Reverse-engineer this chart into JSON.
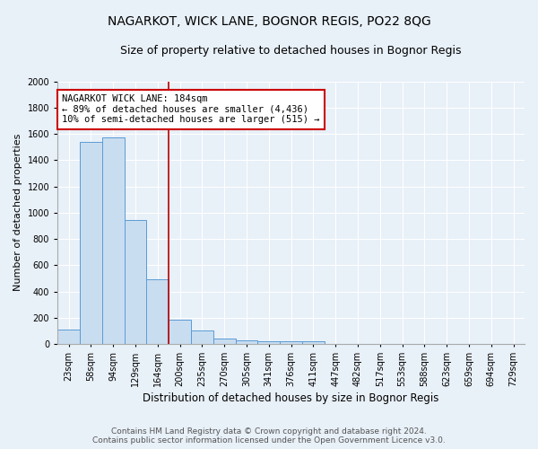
{
  "title": "NAGARKOT, WICK LANE, BOGNOR REGIS, PO22 8QG",
  "subtitle": "Size of property relative to detached houses in Bognor Regis",
  "xlabel": "Distribution of detached houses by size in Bognor Regis",
  "ylabel": "Number of detached properties",
  "bar_color": "#c9ddf0",
  "bar_edge_color": "#5b9bd5",
  "categories": [
    "23sqm",
    "58sqm",
    "94sqm",
    "129sqm",
    "164sqm",
    "200sqm",
    "235sqm",
    "270sqm",
    "305sqm",
    "341sqm",
    "376sqm",
    "411sqm",
    "447sqm",
    "482sqm",
    "517sqm",
    "553sqm",
    "588sqm",
    "623sqm",
    "659sqm",
    "694sqm",
    "729sqm"
  ],
  "values": [
    110,
    1540,
    1570,
    945,
    490,
    185,
    100,
    40,
    30,
    20,
    20,
    20,
    0,
    0,
    0,
    0,
    0,
    0,
    0,
    0,
    0
  ],
  "red_line_x": 4.5,
  "annotation_text": "NAGARKOT WICK LANE: 184sqm\n← 89% of detached houses are smaller (4,436)\n10% of semi-detached houses are larger (515) →",
  "annotation_box_facecolor": "#ffffff",
  "annotation_border_color": "#cc0000",
  "ylim": [
    0,
    2000
  ],
  "yticks": [
    0,
    200,
    400,
    600,
    800,
    1000,
    1200,
    1400,
    1600,
    1800,
    2000
  ],
  "footer1": "Contains HM Land Registry data © Crown copyright and database right 2024.",
  "footer2": "Contains public sector information licensed under the Open Government Licence v3.0.",
  "bg_color": "#e8f0f8",
  "grid_color": "#ffffff",
  "title_fontsize": 10,
  "subtitle_fontsize": 9,
  "xlabel_fontsize": 8.5,
  "ylabel_fontsize": 8,
  "tick_fontsize": 7,
  "annotation_fontsize": 7.5,
  "footer_fontsize": 6.5
}
